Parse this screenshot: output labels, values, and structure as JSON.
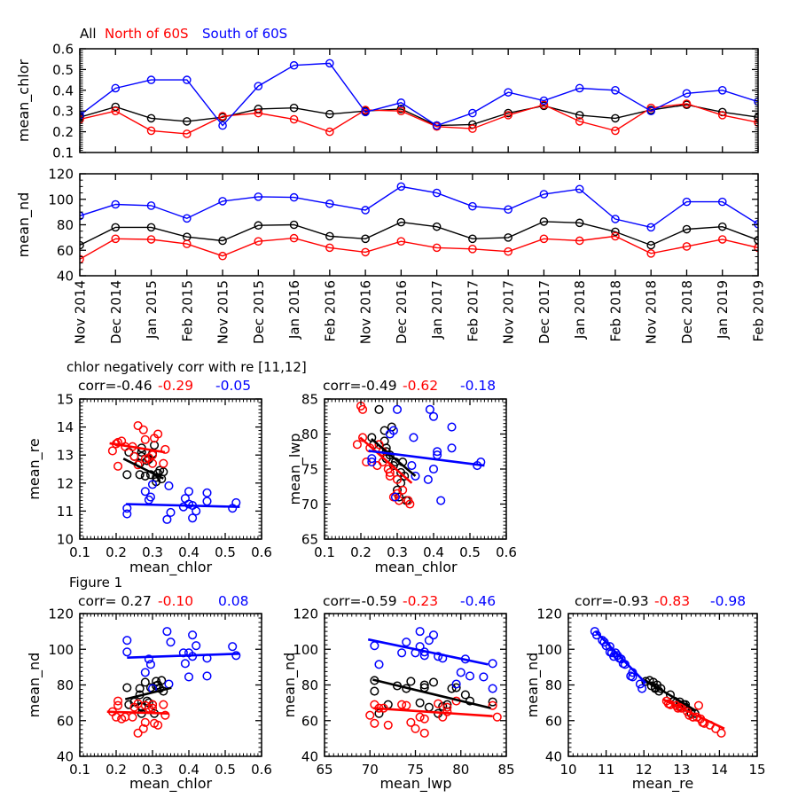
{
  "chart_data": {
    "type": "line+scatter",
    "legend": {
      "all": "All",
      "north": "North of 60S",
      "south": "South of 60S"
    },
    "colors": {
      "all": "#000000",
      "north": "#ff0000",
      "south": "#0000ff",
      "frame": "#000000"
    },
    "section_titles": {
      "row1": "chlor negatively corr with re [11,12]",
      "row2": "Figure 1"
    },
    "months": [
      "Nov 2014",
      "Dec 2014",
      "Jan 2015",
      "Feb 2015",
      "Nov 2015",
      "Dec 2015",
      "Jan 2016",
      "Feb 2016",
      "Nov 2016",
      "Dec 2016",
      "Jan 2017",
      "Feb 2017",
      "Nov 2017",
      "Dec 2017",
      "Jan 2018",
      "Feb 2018",
      "Nov 2018",
      "Dec 2018",
      "Jan 2019",
      "Feb 2019"
    ],
    "variables": {
      "mean_chlor": {
        "all": [
          0.27,
          0.32,
          0.265,
          0.25,
          0.27,
          0.31,
          0.315,
          0.285,
          0.3,
          0.31,
          0.23,
          0.235,
          0.29,
          0.325,
          0.28,
          0.265,
          0.305,
          0.33,
          0.295,
          0.27
        ],
        "north": [
          0.26,
          0.3,
          0.205,
          0.19,
          0.275,
          0.29,
          0.26,
          0.2,
          0.305,
          0.3,
          0.225,
          0.215,
          0.28,
          0.33,
          0.25,
          0.205,
          0.315,
          0.335,
          0.28,
          0.245
        ],
        "south": [
          0.28,
          0.41,
          0.45,
          0.45,
          0.23,
          0.42,
          0.52,
          0.53,
          0.295,
          0.34,
          0.23,
          0.29,
          0.39,
          0.35,
          0.41,
          0.4,
          0.3,
          0.385,
          0.4,
          0.345
        ]
      },
      "mean_nd": {
        "all": [
          64,
          78,
          78,
          70.5,
          67.5,
          79.5,
          80,
          71,
          69,
          82,
          78.5,
          69,
          70,
          82.5,
          81.5,
          74.5,
          64,
          76.5,
          78.5,
          68
        ],
        "north": [
          53,
          69,
          68.5,
          65,
          55.5,
          67,
          69.5,
          62,
          58.5,
          67,
          62,
          61,
          59,
          69,
          67.5,
          71,
          57.5,
          63,
          68.5,
          62
        ],
        "south": [
          87,
          96,
          95,
          85,
          98.5,
          102,
          101.5,
          96.5,
          91.5,
          110,
          105,
          94.5,
          92,
          104,
          108,
          84.5,
          78,
          98,
          98,
          80.5
        ]
      },
      "mean_re": {
        "all": [
          13.25,
          12.45,
          12.3,
          12.95,
          13.1,
          12.2,
          12.35,
          12.8,
          13.05,
          12.05,
          12.3,
          13.1,
          12.85,
          12.15,
          12.25,
          12.7,
          13.35,
          12.4,
          12.3,
          12.95
        ],
        "north": [
          14.05,
          12.7,
          13.45,
          13.15,
          13.9,
          12.9,
          12.65,
          13.4,
          13.6,
          13.0,
          13.3,
          13.5,
          13.55,
          12.7,
          12.95,
          12.6,
          13.75,
          13.2,
          12.85,
          13.3
        ],
        "south": [
          11.7,
          11.2,
          11.35,
          11.65,
          11.1,
          11.0,
          11.1,
          11.3,
          11.5,
          10.7,
          10.9,
          11.4,
          11.45,
          10.95,
          10.75,
          11.7,
          11.95,
          11.15,
          11.25,
          11.9
        ]
      },
      "mean_lwp": {
        "all": [
          77.5,
          74,
          79,
          83.5,
          76.5,
          73,
          76,
          81,
          72,
          74.5,
          79.5,
          78.5,
          75.5,
          70.5,
          77,
          80.5,
          71,
          70.5,
          76,
          78
        ],
        "north": [
          76,
          73.5,
          83.5,
          78.5,
          75,
          71,
          77.5,
          84,
          70.5,
          71.5,
          78,
          76,
          74.5,
          70.5,
          78.5,
          79.5,
          72,
          70,
          74,
          75.5
        ],
        "south": [
          80,
          77.5,
          78,
          81,
          76,
          70.5,
          75.5,
          76,
          71,
          75.5,
          76.5,
          80.5,
          83.5,
          74,
          77,
          82.5,
          83.5,
          73.5,
          75,
          79.5
        ]
      }
    },
    "timeseries_panels": [
      {
        "ylabel": "mean_chlor",
        "var": "mean_chlor",
        "ymin": 0.1,
        "ymax": 0.6,
        "ytick": 0.1,
        "yminor": 0.01,
        "ydec": 1
      },
      {
        "ylabel": "mean_nd",
        "var": "mean_nd",
        "ymin": 40,
        "ymax": 120,
        "ytick": 20,
        "yminor": 5,
        "ydec": 0
      }
    ],
    "scatter_panels": [
      {
        "xvar": "mean_chlor",
        "yvar": "mean_re",
        "xlabel": "mean_chlor",
        "ylabel": "mean_re",
        "xmin": 0.1,
        "xmax": 0.6,
        "xtick": 0.1,
        "xminor": 0.01,
        "xdec": 1,
        "ymin": 10,
        "ymax": 15,
        "ytick": 1,
        "yminor": 0.125,
        "ydec": 0,
        "corr": {
          "all": "corr=-0.46",
          "north": "-0.29",
          "south": "-0.05"
        },
        "trend": {
          "all": [
            0.22,
            12.87,
            0.33,
            12.16
          ],
          "north": [
            0.182,
            13.42,
            0.334,
            13.1
          ],
          "south": [
            0.227,
            11.25,
            0.54,
            11.15
          ]
        }
      },
      {
        "xvar": "mean_chlor",
        "yvar": "mean_lwp",
        "xlabel": "mean_chlor",
        "ylabel": "mean_lwp",
        "xmin": 0.1,
        "xmax": 0.6,
        "xtick": 0.1,
        "xminor": 0.01,
        "xdec": 1,
        "ymin": 65,
        "ymax": 85,
        "ytick": 5,
        "yminor": 0.5,
        "ydec": 0,
        "corr": {
          "all": "corr=-0.49",
          "north": "-0.62",
          "south": "-0.18"
        },
        "trend": {
          "all": [
            0.229,
            79.3,
            0.35,
            74.0
          ],
          "north": [
            0.198,
            79.5,
            0.34,
            73.0
          ],
          "south": [
            0.221,
            77.6,
            0.54,
            75.5
          ]
        }
      },
      {
        "xvar": "mean_chlor",
        "yvar": "mean_nd",
        "xlabel": "mean_chlor",
        "ylabel": "mean_nd",
        "xmin": 0.1,
        "xmax": 0.6,
        "xtick": 0.1,
        "xminor": 0.01,
        "xdec": 1,
        "ymin": 40,
        "ymax": 120,
        "ytick": 20,
        "yminor": 2.5,
        "ydec": 0,
        "corr": {
          "all": "corr= 0.27",
          "north": "-0.10",
          "south": "0.08"
        },
        "trend": {
          "all": [
            0.225,
            72.0,
            0.352,
            78.4
          ],
          "north": [
            0.175,
            65.0,
            0.345,
            64.0
          ],
          "south": [
            0.23,
            95.3,
            0.54,
            97.5
          ]
        }
      },
      {
        "xvar": "mean_lwp",
        "yvar": "mean_nd",
        "xlabel": "mean_lwp",
        "ylabel": "mean_nd",
        "xmin": 65,
        "xmax": 85,
        "xtick": 5,
        "xminor": 0.5,
        "xdec": 0,
        "ymin": 40,
        "ymax": 120,
        "ytick": 20,
        "yminor": 2.5,
        "ydec": 0,
        "corr": {
          "all": "corr=-0.59",
          "north": "-0.23",
          "south": "-0.46"
        },
        "trend": {
          "all": [
            70.3,
            83.0,
            83.3,
            67.0
          ],
          "north": [
            70.4,
            67.0,
            83.5,
            62.5
          ],
          "south": [
            69.8,
            105.5,
            83.0,
            91.5
          ]
        }
      },
      {
        "xvar": "mean_re",
        "yvar": "mean_nd",
        "xlabel": "mean_re",
        "ylabel": "mean_nd",
        "xmin": 10,
        "xmax": 15,
        "xtick": 1,
        "xminor": 0.125,
        "xdec": 0,
        "ymin": 40,
        "ymax": 120,
        "ytick": 20,
        "yminor": 2.5,
        "ydec": 0,
        "corr": {
          "all": "corr=-0.93",
          "north": "-0.83",
          "south": "-0.98"
        },
        "trend": {
          "all": [
            12.0,
            83.0,
            13.38,
            65.5
          ],
          "north": [
            12.5,
            72.0,
            14.13,
            55.5
          ],
          "south": [
            10.72,
            110.0,
            12.05,
            81.0
          ]
        }
      }
    ]
  }
}
